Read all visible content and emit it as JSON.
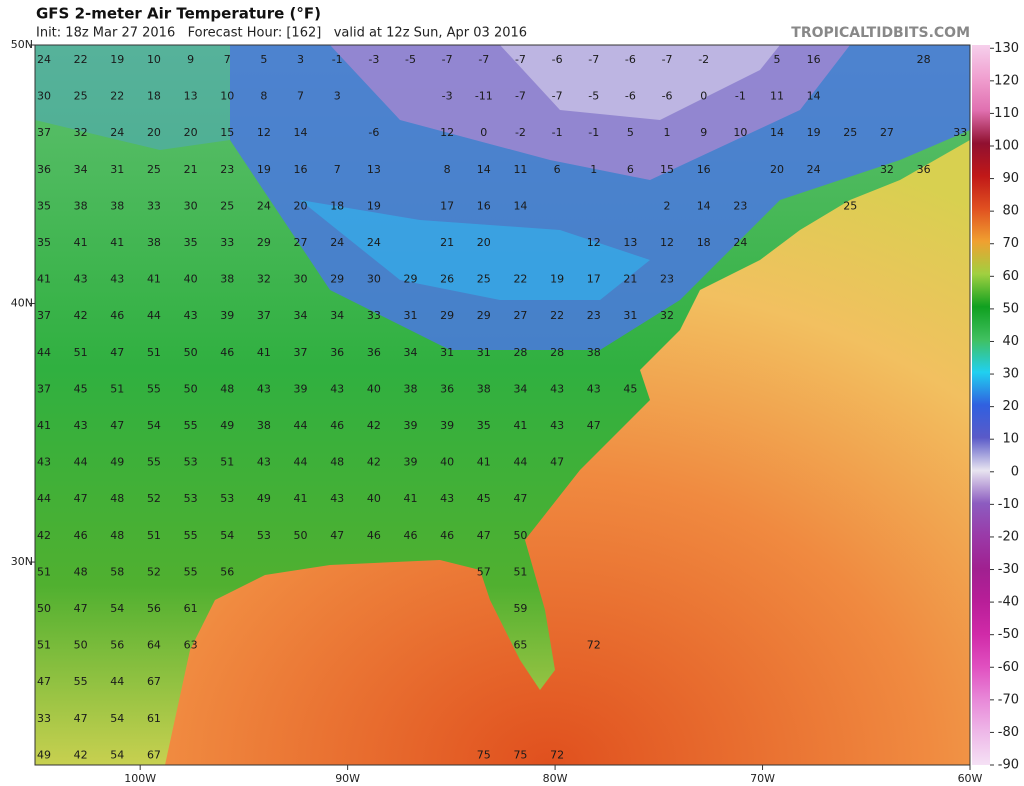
{
  "header": {
    "title": "GFS 2-meter Air Temperature (°F)",
    "subtitle": "Init: 18z Mar 27 2016   Forecast Hour: [162]   valid at 12z Sun, Apr 03 2016",
    "credit": "TROPICALTIDBITS.COM"
  },
  "map": {
    "lonlim": [
      -105.07,
      -60
    ],
    "latlim": [
      22.15,
      50
    ],
    "lonticks": [
      {
        "value": -100,
        "label": "100W"
      },
      {
        "value": -90,
        "label": "90W"
      },
      {
        "value": -80,
        "label": "80W"
      },
      {
        "value": -70,
        "label": "70W"
      },
      {
        "value": -60,
        "label": "60W"
      }
    ],
    "latticks": [
      {
        "value": 50,
        "label": "50N"
      },
      {
        "value": 40,
        "label": "40N"
      },
      {
        "value": 30,
        "label": "30N"
      }
    ],
    "temperatures": [
      [
        24,
        22,
        19,
        10,
        9,
        7,
        5,
        3,
        -1,
        -3,
        -5,
        -7,
        -7,
        -7,
        -6,
        -7,
        -6,
        -7,
        -2,
        null,
        5,
        16,
        null,
        null,
        28
      ],
      [
        30,
        25,
        22,
        18,
        13,
        10,
        8,
        7,
        3,
        null,
        null,
        -3,
        -11,
        -7,
        -7,
        -5,
        -6,
        -6,
        0,
        -1,
        11,
        14
      ],
      [
        37,
        32,
        24,
        20,
        20,
        15,
        12,
        14,
        null,
        -6,
        null,
        12,
        0,
        -2,
        -1,
        -1,
        5,
        1,
        9,
        10,
        14,
        19,
        25,
        27,
        null,
        33
      ],
      [
        36,
        34,
        31,
        25,
        21,
        23,
        19,
        16,
        7,
        13,
        null,
        8,
        14,
        11,
        6,
        1,
        6,
        15,
        16,
        null,
        20,
        24,
        null,
        32,
        36
      ],
      [
        35,
        38,
        38,
        33,
        30,
        25,
        24,
        20,
        18,
        19,
        null,
        17,
        16,
        14,
        null,
        null,
        null,
        2,
        14,
        23,
        null,
        null,
        25
      ],
      [
        35,
        41,
        41,
        38,
        35,
        33,
        29,
        27,
        24,
        24,
        null,
        21,
        20,
        null,
        null,
        12,
        13,
        12,
        18,
        24
      ],
      [
        41,
        43,
        43,
        41,
        40,
        38,
        32,
        30,
        29,
        30,
        29,
        26,
        25,
        22,
        19,
        17,
        21,
        23
      ],
      [
        37,
        42,
        46,
        44,
        43,
        39,
        37,
        34,
        34,
        33,
        31,
        29,
        29,
        27,
        22,
        23,
        31,
        32
      ],
      [
        44,
        51,
        47,
        51,
        50,
        46,
        41,
        37,
        36,
        36,
        34,
        31,
        31,
        28,
        28,
        38
      ],
      [
        37,
        45,
        51,
        55,
        50,
        48,
        43,
        39,
        43,
        40,
        38,
        36,
        38,
        34,
        43,
        43,
        45
      ],
      [
        41,
        43,
        47,
        54,
        55,
        49,
        38,
        44,
        46,
        42,
        39,
        39,
        35,
        41,
        43,
        47
      ],
      [
        43,
        44,
        49,
        55,
        53,
        51,
        43,
        44,
        48,
        42,
        39,
        40,
        41,
        44,
        47
      ],
      [
        44,
        47,
        48,
        52,
        53,
        53,
        49,
        41,
        43,
        40,
        41,
        43,
        45,
        47
      ],
      [
        42,
        46,
        48,
        51,
        55,
        54,
        53,
        50,
        47,
        46,
        46,
        46,
        47,
        50
      ],
      [
        51,
        48,
        58,
        52,
        55,
        56,
        null,
        null,
        null,
        null,
        null,
        null,
        57,
        51
      ],
      [
        50,
        47,
        54,
        56,
        61,
        null,
        null,
        null,
        null,
        null,
        null,
        null,
        null,
        59
      ],
      [
        51,
        50,
        56,
        64,
        63,
        null,
        null,
        null,
        null,
        null,
        null,
        null,
        null,
        65,
        null,
        72
      ],
      [
        47,
        55,
        44,
        67
      ],
      [
        33,
        47,
        54,
        61
      ],
      [
        49,
        42,
        54,
        67,
        null,
        null,
        null,
        null,
        null,
        null,
        null,
        null,
        75,
        75,
        72
      ]
    ]
  },
  "colorbar": {
    "lim": [
      -90,
      131
    ],
    "ticks": [
      130,
      120,
      110,
      100,
      90,
      80,
      70,
      60,
      50,
      40,
      30,
      20,
      10,
      0,
      -10,
      -20,
      -30,
      -40,
      -50,
      -60,
      -70,
      -80,
      -90
    ],
    "colors": [
      "#f5e1f5",
      "#eeb8e8",
      "#e888d8",
      "#e050c0",
      "#d02aa8",
      "#b81e98",
      "#a02090",
      "#9a3aa8",
      "#8c5cc0",
      "#e8e4f0",
      "#5a5ac8",
      "#3060e0",
      "#20d0f0",
      "#40c060",
      "#10a020",
      "#a0d040",
      "#f0a030",
      "#e05020",
      "#c01818",
      "#901030",
      "#e070b0",
      "#f0a0d0",
      "#f6d0ec"
    ]
  }
}
